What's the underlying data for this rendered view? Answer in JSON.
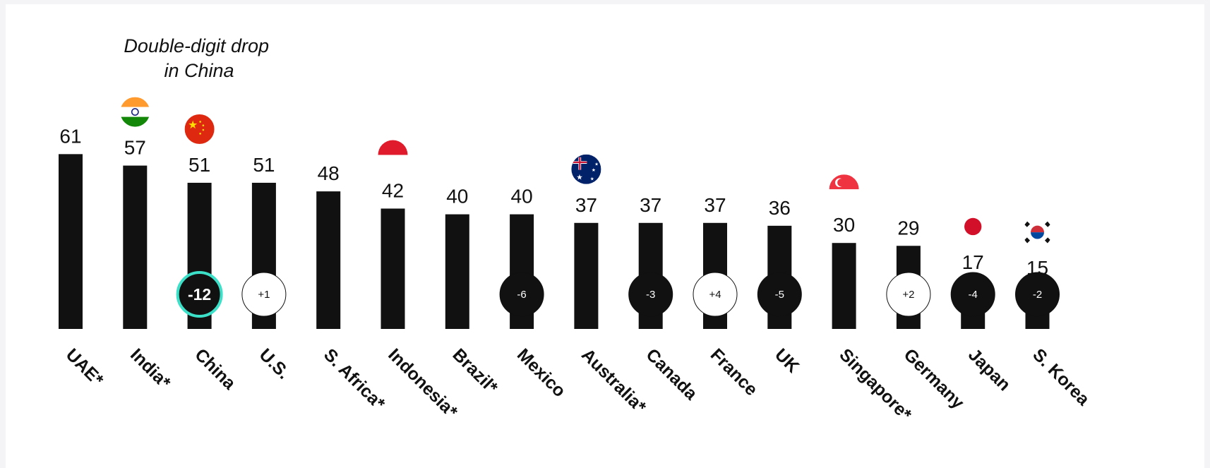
{
  "chart_data": {
    "type": "bar",
    "title": "",
    "xlabel": "",
    "ylabel": "",
    "ylim": [
      0,
      70
    ],
    "grid": false,
    "annotation": [
      "Double-digit drop",
      "in China"
    ],
    "categories": [
      "UAE*",
      "India*",
      "China",
      "U.S.",
      "S. Africa*",
      "Indonesia*",
      "Brazil*",
      "Mexico",
      "Australia*",
      "Canada",
      "France",
      "UK",
      "Singapore*",
      "Germany",
      "Japan",
      "S. Korea"
    ],
    "values": [
      61,
      57,
      51,
      51,
      48,
      42,
      40,
      40,
      37,
      37,
      37,
      36,
      30,
      29,
      17,
      15
    ],
    "changes": [
      "",
      "",
      "-12",
      "+1",
      "",
      "",
      "",
      "-6",
      "",
      "-3",
      "+4",
      "-5",
      "",
      "+2",
      "-4",
      "-2"
    ],
    "change_direction": [
      "",
      "",
      "down",
      "up",
      "",
      "",
      "",
      "down",
      "",
      "down",
      "up",
      "down",
      "",
      "up",
      "down",
      "down"
    ],
    "highlight": "China",
    "flags": [
      "",
      "india",
      "china",
      "",
      "",
      "indonesia",
      "",
      "",
      "australia",
      "",
      "",
      "",
      "singapore",
      "",
      "japan",
      "south-korea"
    ],
    "colors": {
      "bar": "#111111",
      "down_fill": "#111111",
      "up_fill": "#ffffff",
      "highlight_ring": "#3ce0c8",
      "text": "#111111"
    }
  }
}
